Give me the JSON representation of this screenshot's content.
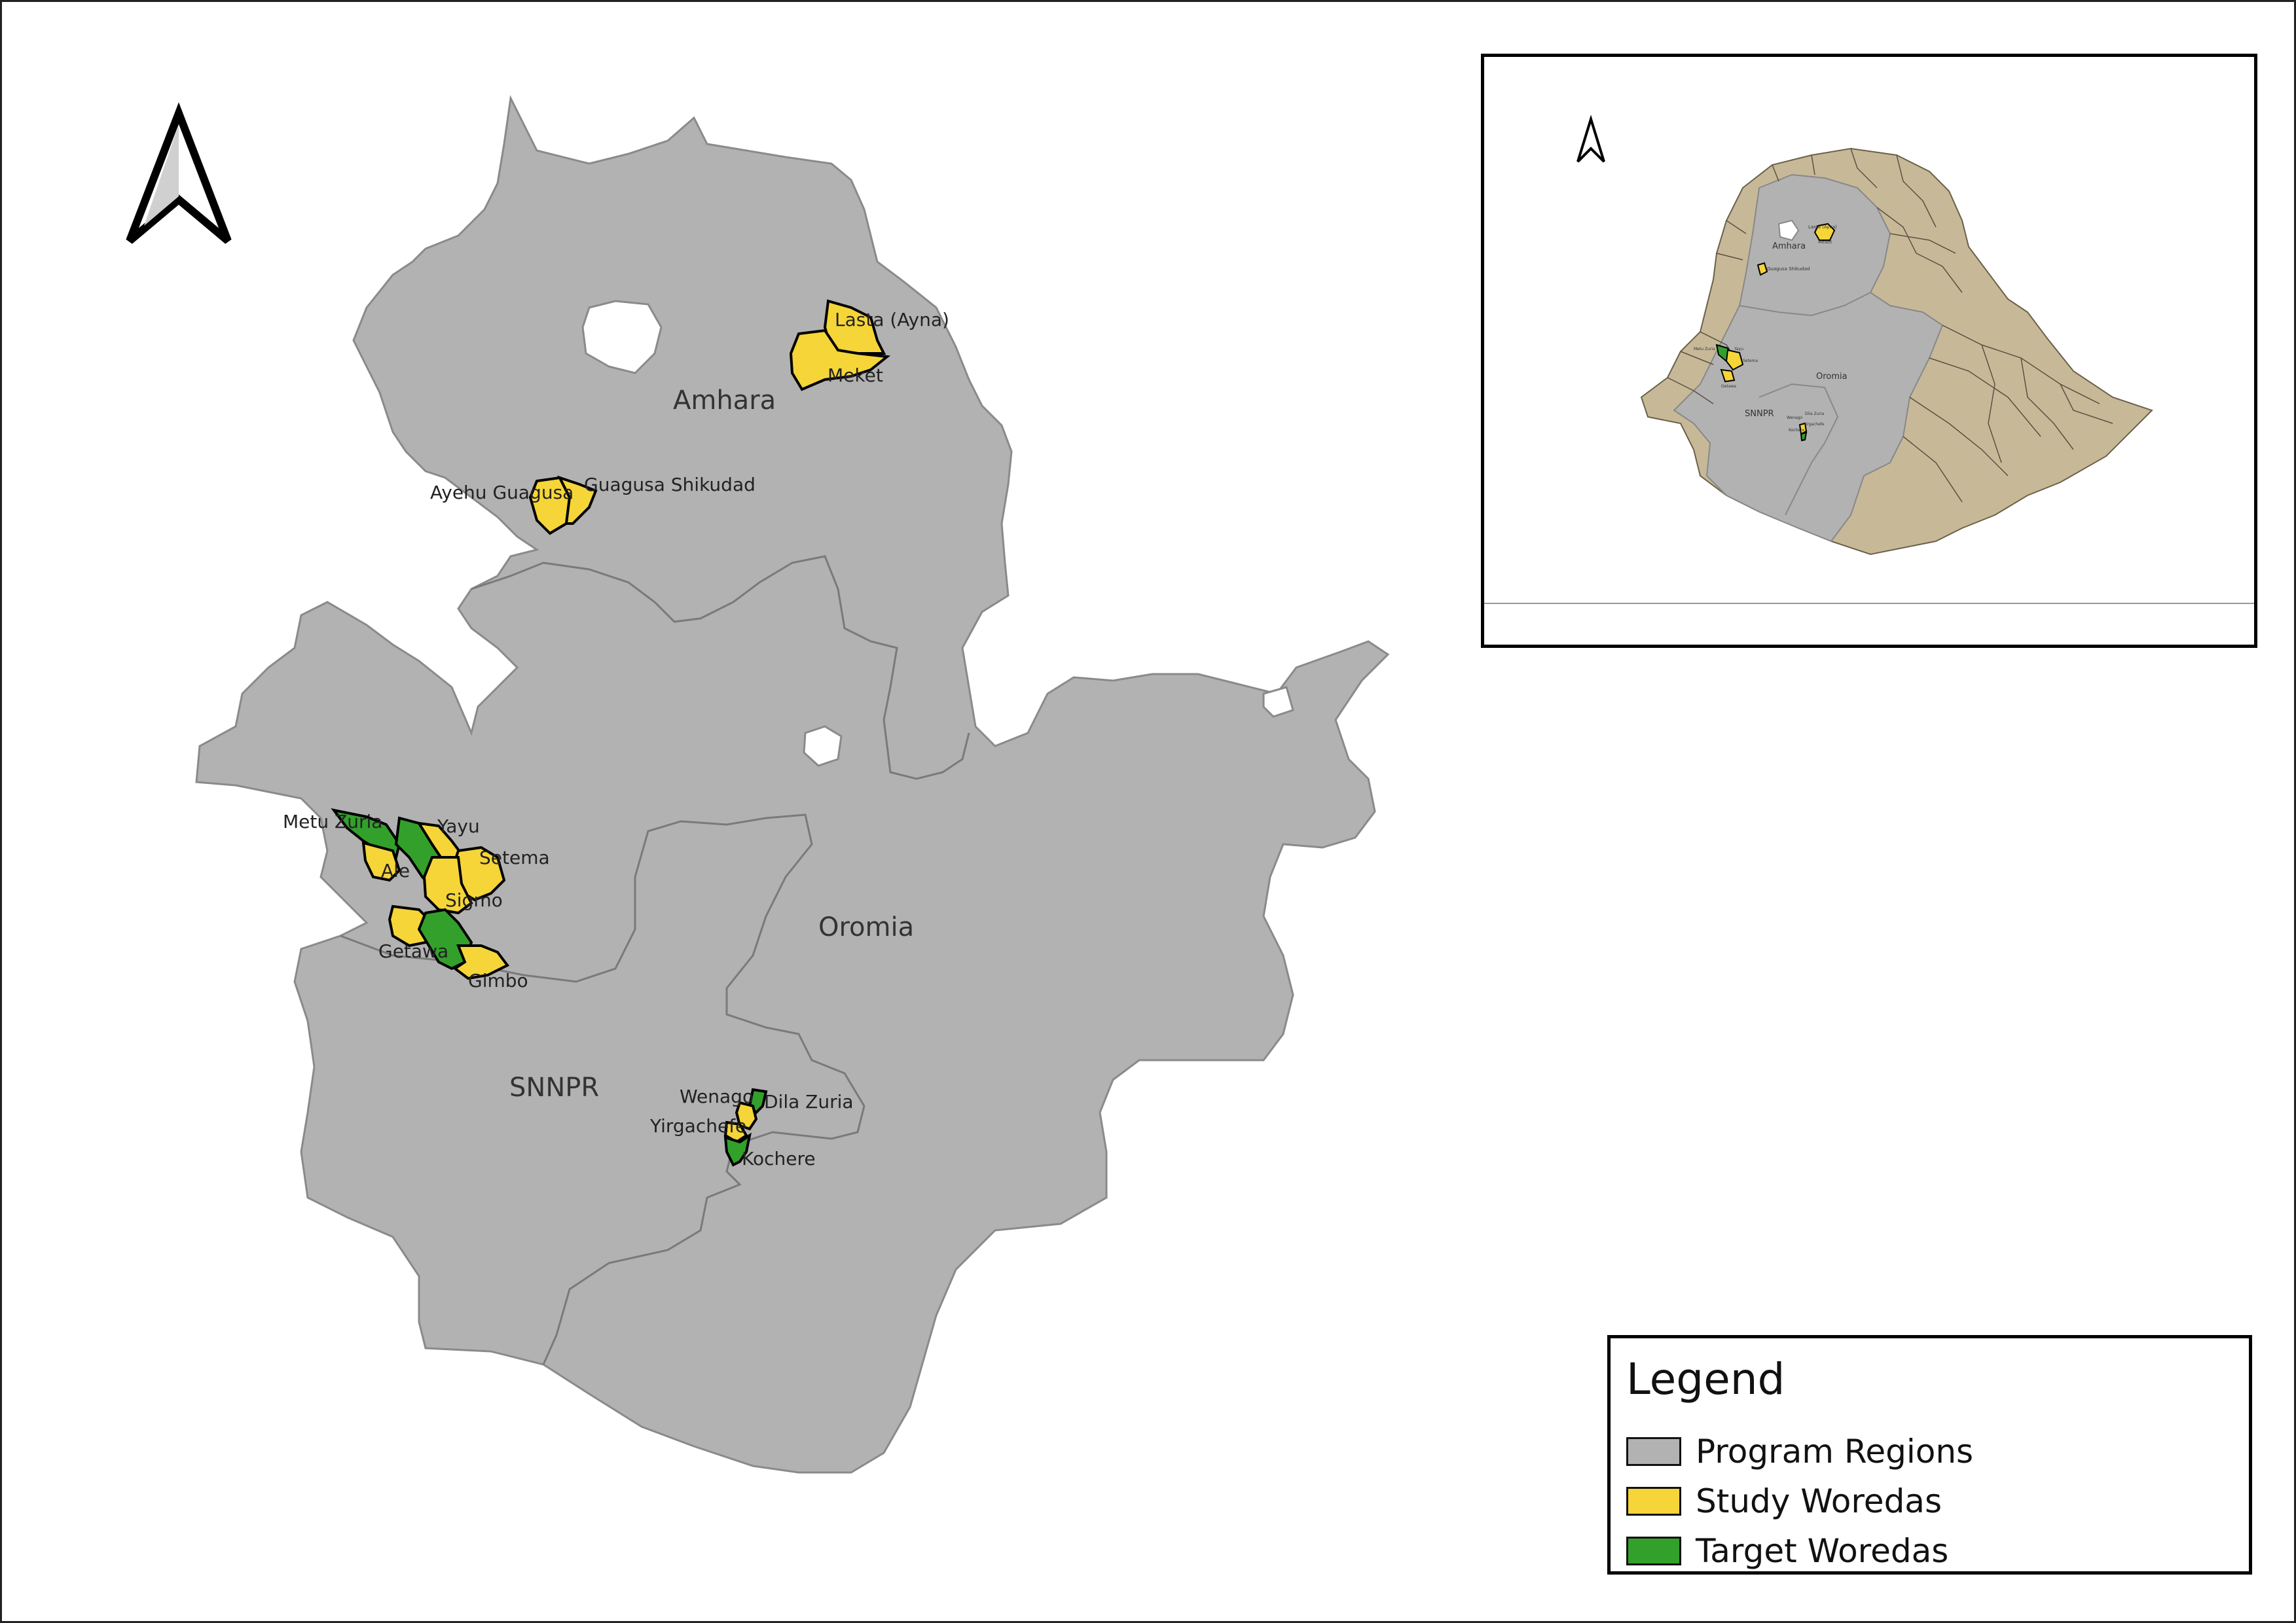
{
  "map": {
    "regions": [
      {
        "name": "Amhara",
        "label": "Amhara"
      },
      {
        "name": "Oromia",
        "label": "Oromia"
      },
      {
        "name": "SNNPR",
        "label": "SNNPR"
      }
    ],
    "woredas": [
      {
        "label": "Lasta (Ayna)",
        "type": "study"
      },
      {
        "label": "Meket",
        "type": "study"
      },
      {
        "label": "Ayehu Guagusa",
        "type": "study"
      },
      {
        "label": "Guagusa Shikudad",
        "type": "study"
      },
      {
        "label": "Metu Zuria",
        "type": "target"
      },
      {
        "label": "Yayu",
        "type": "study"
      },
      {
        "label": "Ale",
        "type": "study"
      },
      {
        "label": "Setema",
        "type": "study"
      },
      {
        "label": "Sigmo",
        "type": "study"
      },
      {
        "label": "Getawa",
        "type": "study"
      },
      {
        "label": "Gimbo",
        "type": "study"
      },
      {
        "label": "Wenago",
        "type": "study"
      },
      {
        "label": "Dila Zuria",
        "type": "target"
      },
      {
        "label": "Yirgachefe",
        "type": "study"
      },
      {
        "label": "Kochere",
        "type": "target"
      }
    ],
    "north_arrow_icon": "north-arrow-icon"
  },
  "inset": {
    "region_labels": [
      "Amhara",
      "Oromia",
      "SNNPR"
    ],
    "woreda_labels": [
      "Lasta (Ayna)",
      "Meket",
      "Guagusa Shikudad",
      "Metu Zuria",
      "Yayu",
      "Setema",
      "Getawa",
      "Wenago",
      "Dila Zuria",
      "Yirgachefe",
      "Kochere"
    ],
    "north_arrow_icon": "north-arrow-icon"
  },
  "legend": {
    "title": "Legend",
    "items": [
      {
        "label": "Program Regions",
        "color": "#b2b2b2"
      },
      {
        "label": "Study Woredas",
        "color": "#f5d538"
      },
      {
        "label": "Target Woredas",
        "color": "#33a02c"
      }
    ]
  },
  "colors": {
    "program_region": "#b2b2b2",
    "study_woreda": "#f5d538",
    "target_woreda": "#33a02c",
    "other_regions": "#c7b998",
    "boundary": "#7a7a7a"
  }
}
